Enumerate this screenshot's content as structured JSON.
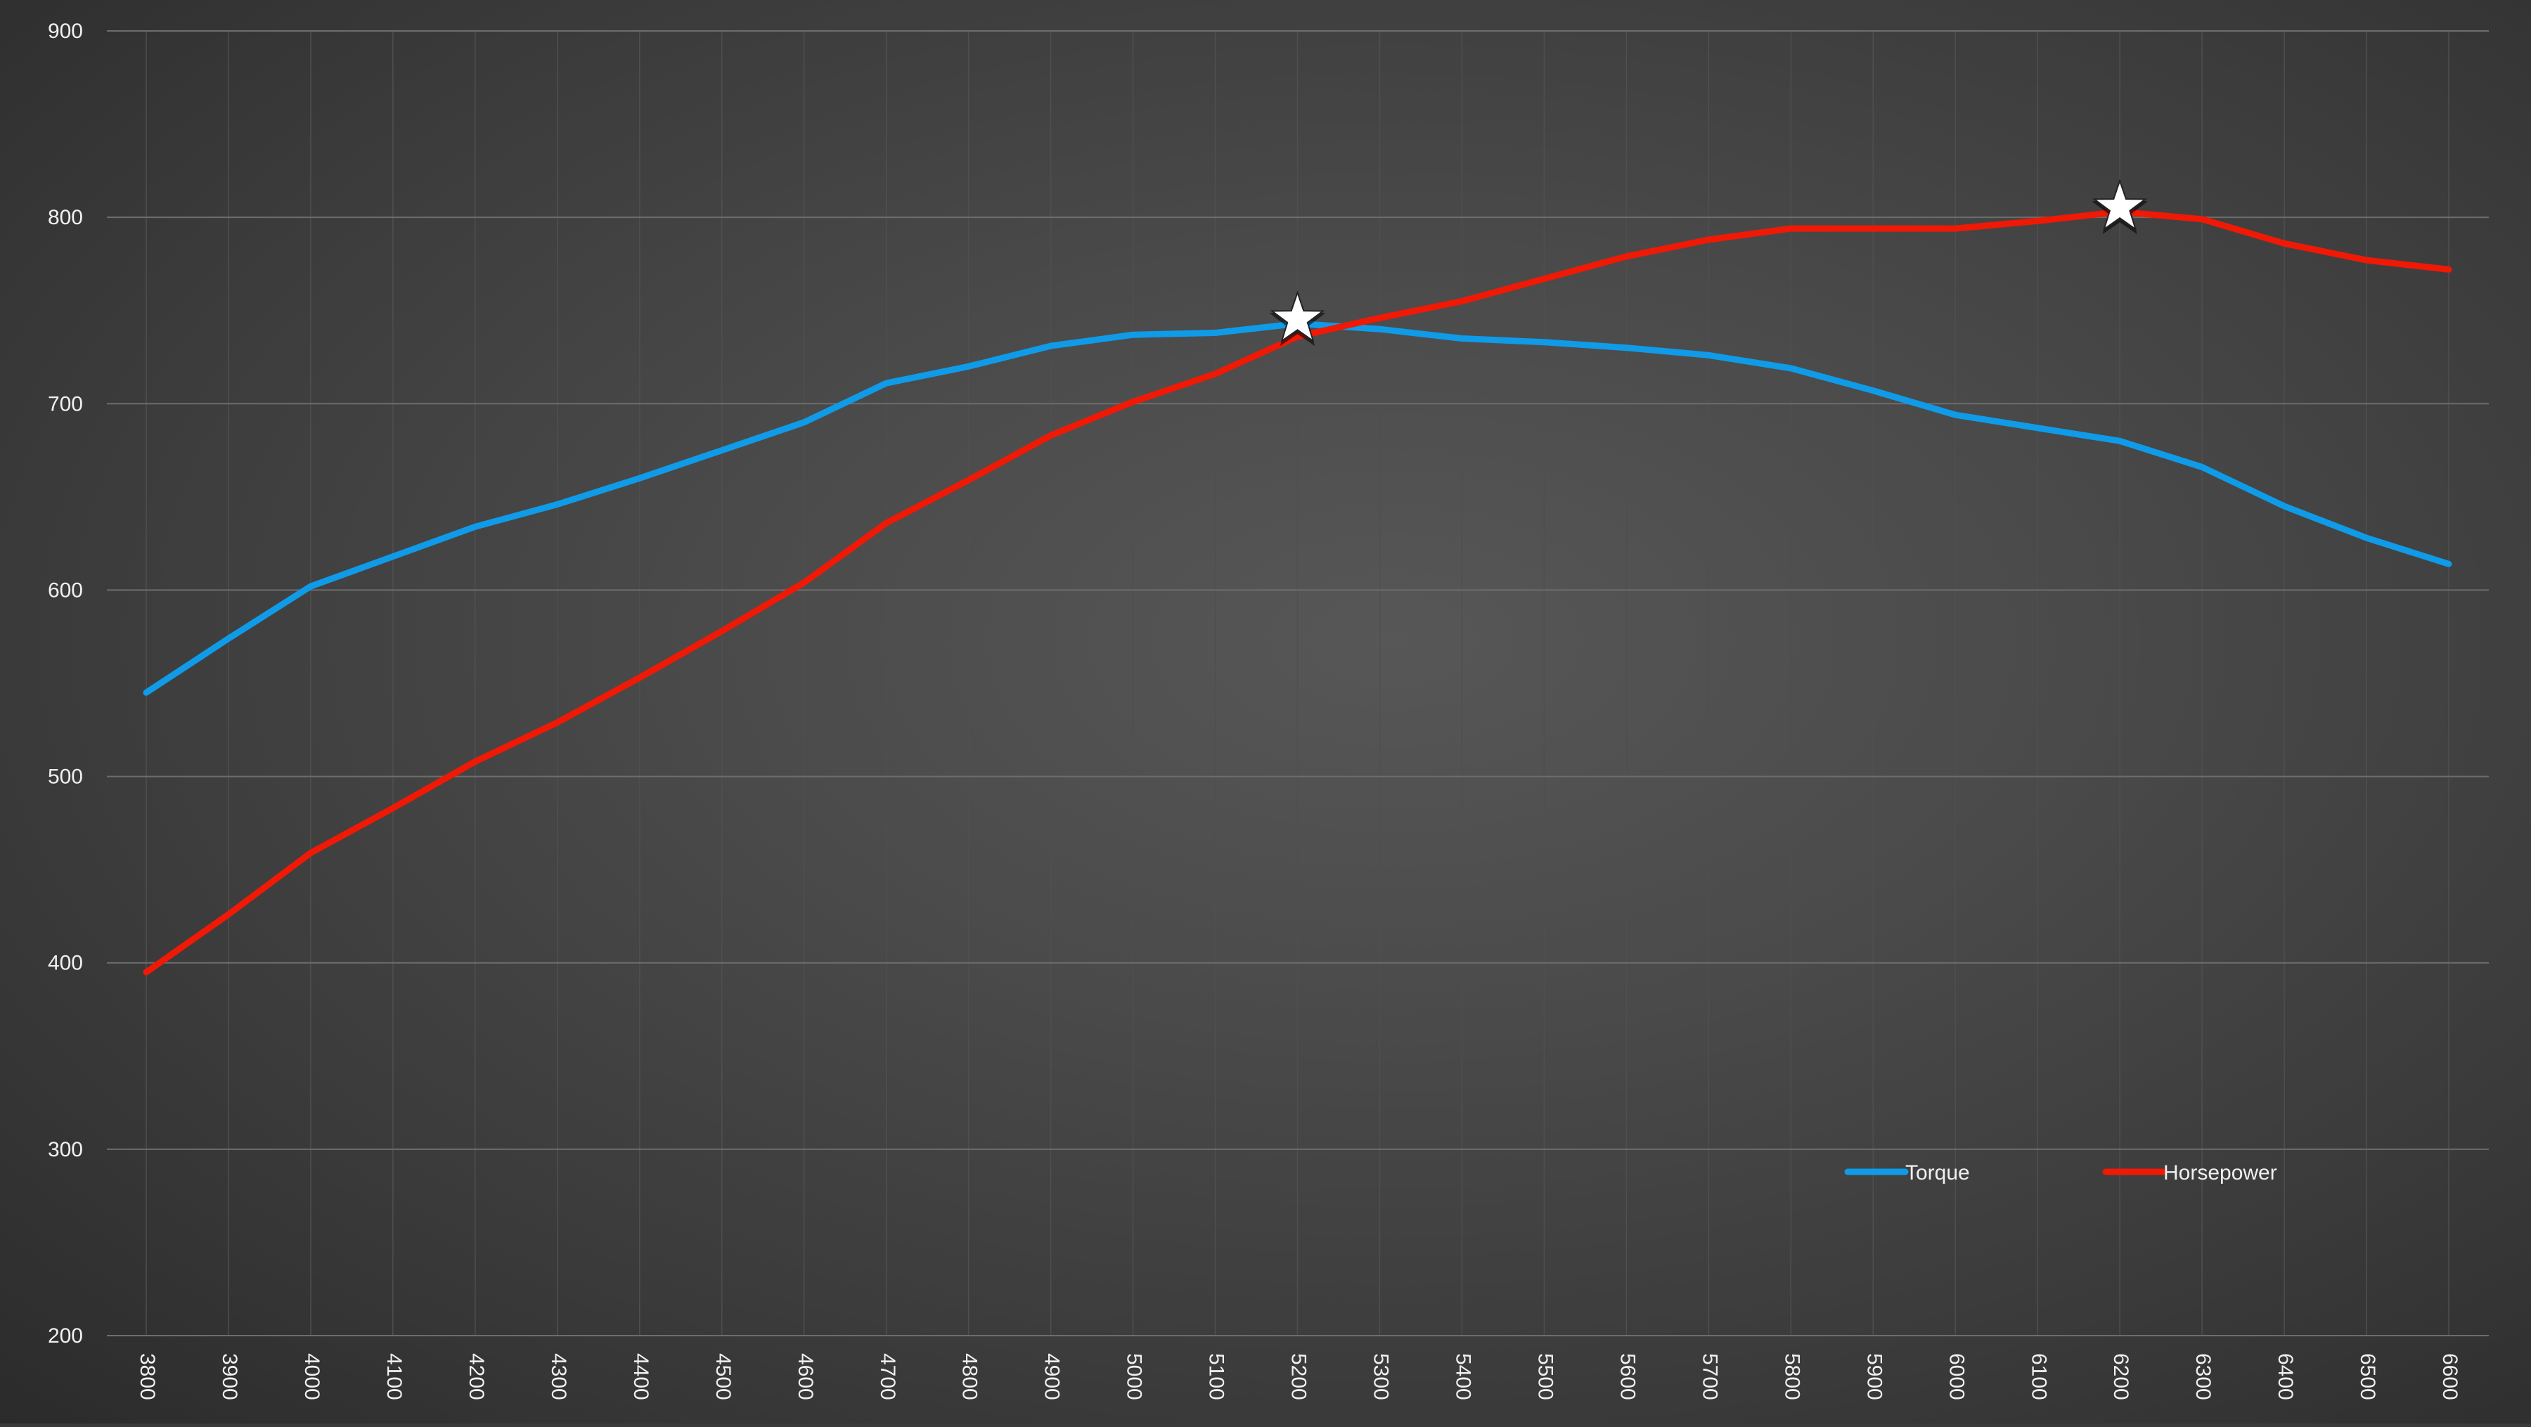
{
  "chart_data": {
    "type": "line",
    "x": [
      3800,
      3900,
      4000,
      4100,
      4200,
      4300,
      4400,
      4500,
      4600,
      4700,
      4800,
      4900,
      5000,
      5100,
      5200,
      5300,
      5400,
      5500,
      5600,
      5700,
      5800,
      5900,
      6000,
      6100,
      6200,
      6300,
      6400,
      6500,
      6600
    ],
    "x_tick_labels": [
      "3800",
      "3900",
      "4000",
      "4100",
      "4200",
      "4300",
      "4400",
      "4500",
      "4600",
      "4700",
      "4800",
      "4900",
      "5000",
      "5100",
      "5200",
      "5300",
      "5400",
      "5500",
      "5600",
      "5700",
      "5800",
      "5900",
      "6000",
      "6100",
      "6200",
      "6300",
      "6400",
      "6500",
      "6600"
    ],
    "ylim": [
      200,
      900
    ],
    "y_ticks": [
      200,
      300,
      400,
      500,
      600,
      700,
      800,
      900
    ],
    "y_tick_labels": [
      "200",
      "300",
      "400",
      "500",
      "600",
      "700",
      "800",
      "900"
    ],
    "grid": true,
    "legend_position": "bottom-right",
    "series": [
      {
        "name": "Torque",
        "color": "#0f9be8",
        "values": [
          545,
          574,
          602,
          618,
          634,
          646,
          660,
          675,
          690,
          711,
          720,
          731,
          737,
          738,
          743,
          740,
          735,
          733,
          730,
          726,
          719,
          707,
          694,
          687,
          680,
          666,
          645,
          628,
          614
        ]
      },
      {
        "name": "Horsepower",
        "color": "#f01905",
        "values": [
          395,
          426,
          459,
          483,
          508,
          529,
          553,
          578,
          604,
          636,
          659,
          683,
          701,
          716,
          736,
          746,
          755,
          767,
          779,
          788,
          794,
          794,
          794,
          798,
          803,
          799,
          786,
          777,
          772
        ]
      }
    ],
    "markers": [
      {
        "series": "Torque",
        "x": 5200,
        "y": 743,
        "symbol": "star",
        "color": "#ffffff"
      },
      {
        "series": "Horsepower",
        "x": 6200,
        "y": 803,
        "symbol": "star",
        "color": "#ffffff"
      }
    ]
  }
}
